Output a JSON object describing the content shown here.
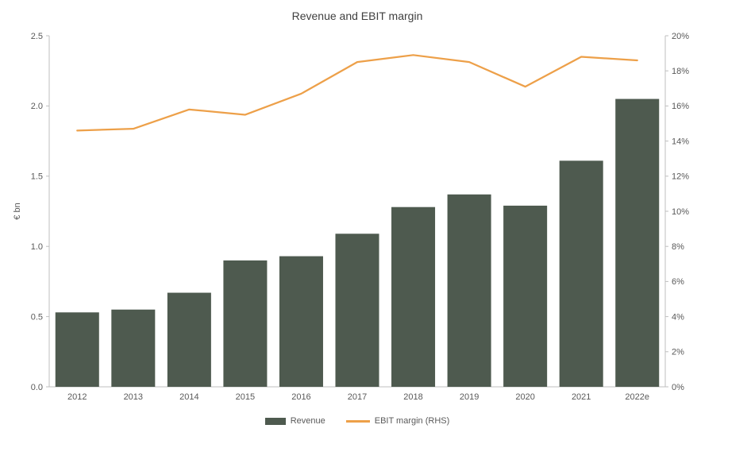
{
  "title": "Revenue and EBIT margin",
  "legend": [
    {
      "label": "Revenue",
      "type": "bar",
      "color": "#4e5a4f"
    },
    {
      "label": "EBIT margin (RHS)",
      "type": "line",
      "color": "#eda049"
    }
  ],
  "chart_data": {
    "type": "bar+line combo",
    "title": "Revenue and EBIT margin",
    "categories": [
      "2012",
      "2013",
      "2014",
      "2015",
      "2016",
      "2017",
      "2018",
      "2019",
      "2020",
      "2021",
      "2022e"
    ],
    "series": [
      {
        "name": "Revenue",
        "type": "bar",
        "axis": "left",
        "color": "#4e5a4f",
        "values": [
          0.53,
          0.55,
          0.67,
          0.9,
          0.93,
          1.09,
          1.28,
          1.37,
          1.29,
          1.61,
          2.05
        ]
      },
      {
        "name": "EBIT margin (RHS)",
        "type": "line",
        "axis": "right",
        "color": "#eda049",
        "values": [
          14.6,
          14.7,
          15.8,
          15.5,
          16.7,
          18.5,
          18.9,
          18.5,
          17.1,
          18.8,
          18.6
        ]
      }
    ],
    "left_axis": {
      "label": "€ bn",
      "min": 0,
      "max": 2.5,
      "step": 0.5,
      "tick_labels": [
        "0.0",
        "0.5",
        "1.0",
        "1.5",
        "2.0",
        "2.5"
      ]
    },
    "right_axis": {
      "label": "",
      "min": 0,
      "max": 20,
      "step": 2,
      "tick_labels": [
        "0%",
        "2%",
        "4%",
        "6%",
        "8%",
        "10%",
        "12%",
        "14%",
        "16%",
        "18%",
        "20%"
      ]
    },
    "grid": false,
    "legend_position": "bottom",
    "axis_color": "#bfbfbf",
    "text_color": "#595959"
  }
}
